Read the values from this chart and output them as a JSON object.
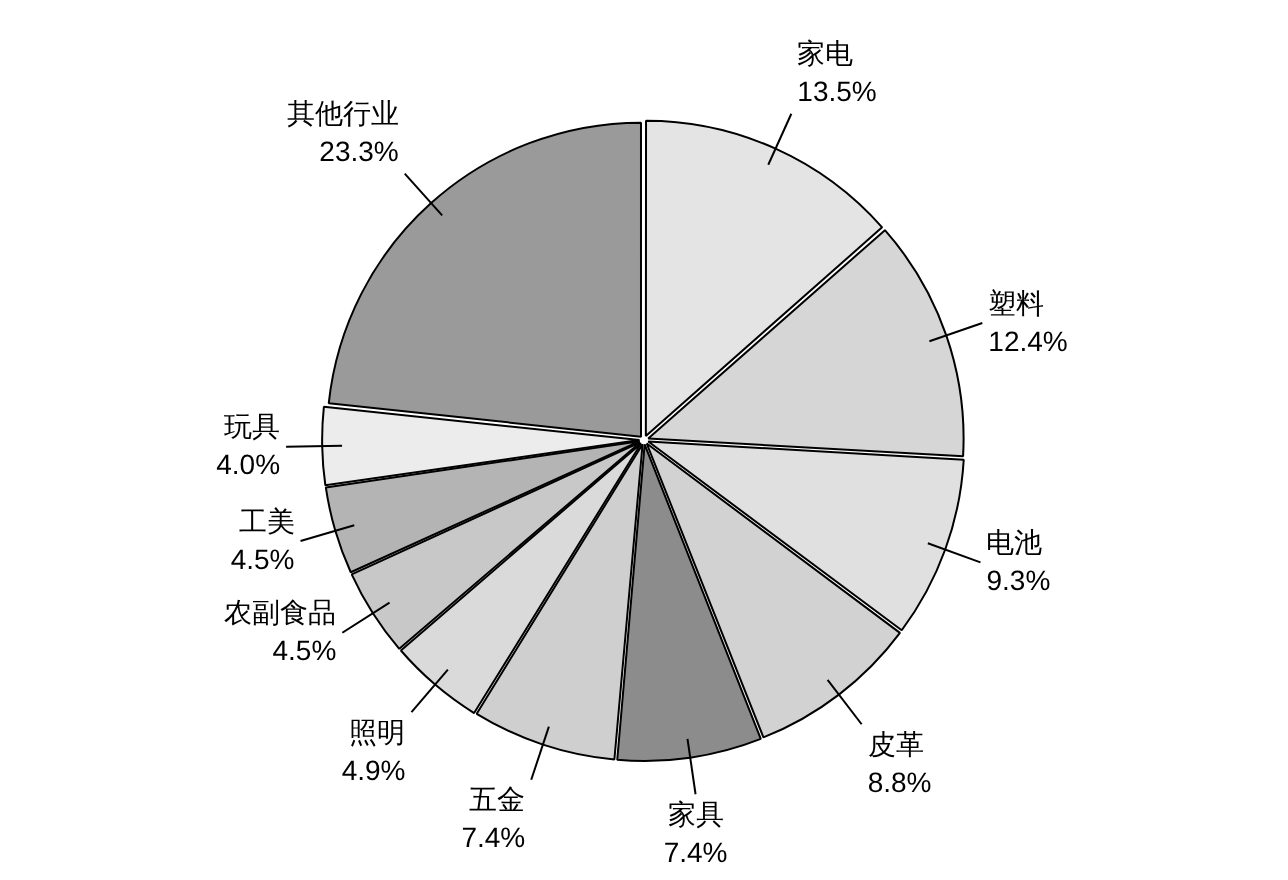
{
  "chart_data": {
    "type": "pie",
    "categories": [
      "家电",
      "塑料",
      "电池",
      "皮革",
      "家具",
      "五金",
      "照明",
      "农副食品",
      "工美",
      "玩具",
      "其他行业"
    ],
    "values": [
      13.5,
      12.4,
      9.3,
      8.8,
      7.4,
      7.4,
      4.9,
      4.5,
      4.5,
      4.0,
      23.3
    ],
    "value_labels": [
      "13.5%",
      "12.4%",
      "9.3%",
      "8.8%",
      "7.4%",
      "7.4%",
      "4.9%",
      "4.5%",
      "4.5%",
      "4.0%",
      "23.3%"
    ],
    "colors": [
      "#e4e4e4",
      "#d6d6d6",
      "#e0e0e0",
      "#d2d2d2",
      "#8c8c8c",
      "#cfcfcf",
      "#dadada",
      "#c8c8c8",
      "#b4b4b4",
      "#ececec",
      "#9a9a9a"
    ],
    "legend": false
  }
}
